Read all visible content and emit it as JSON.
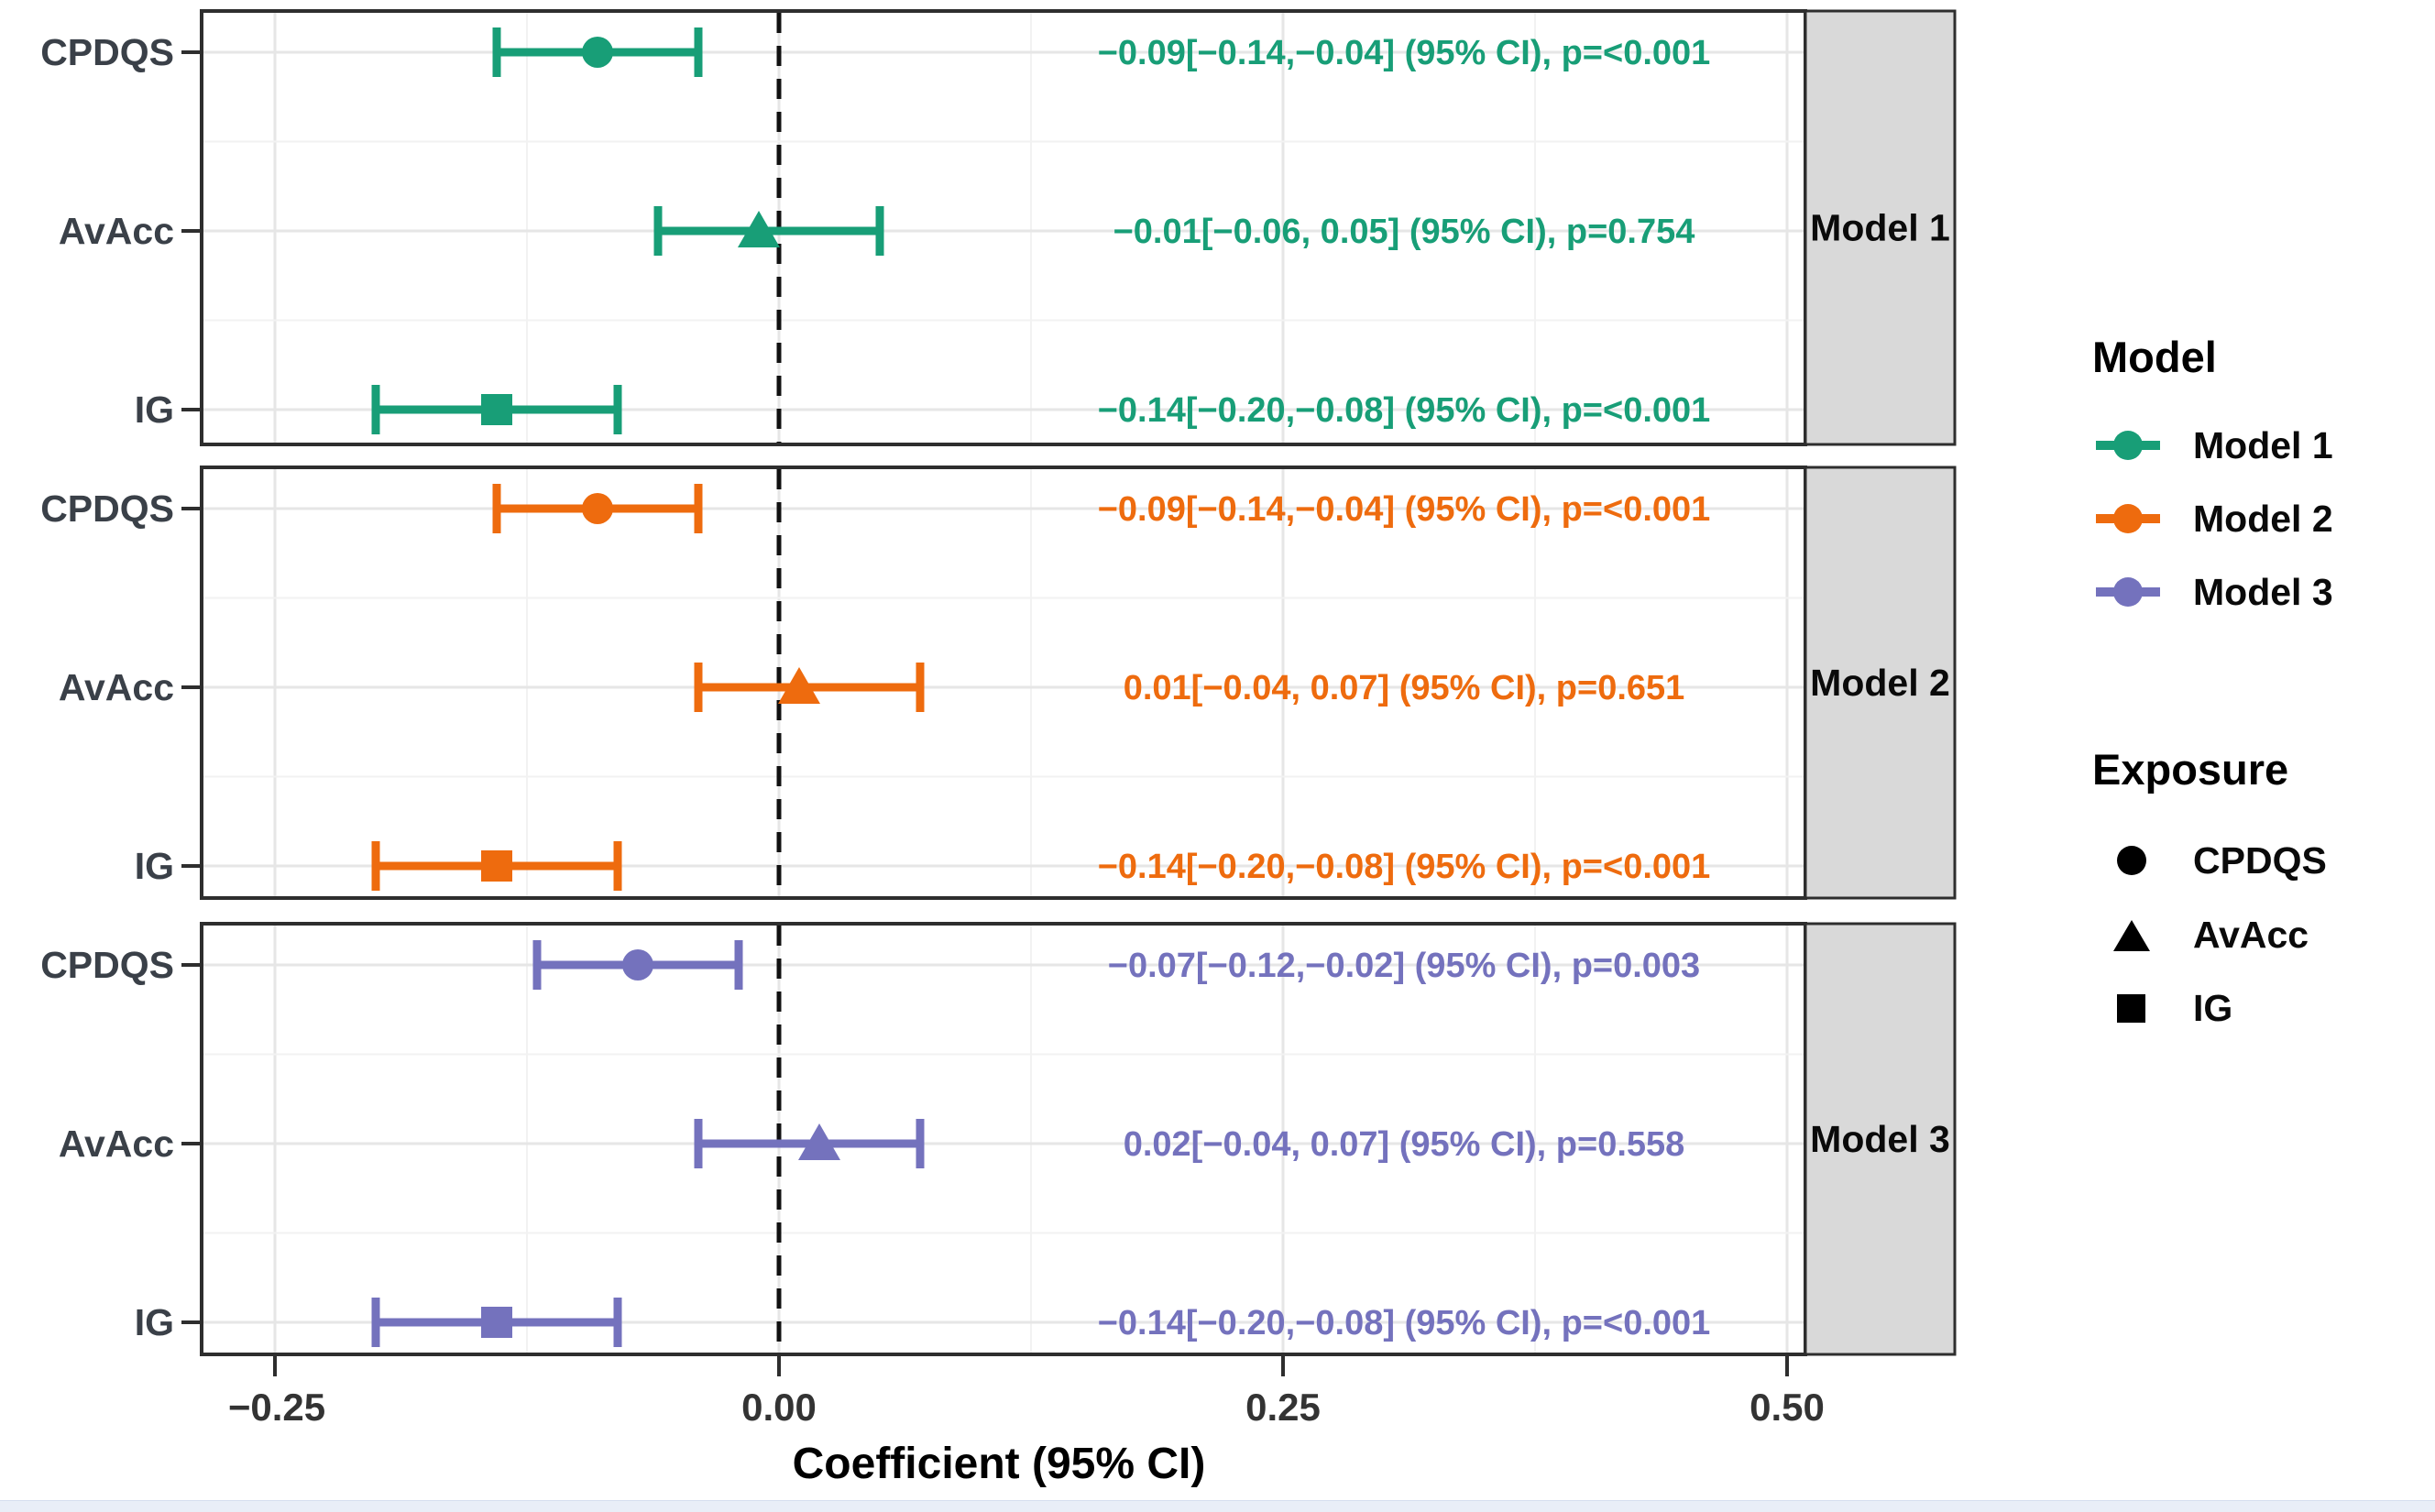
{
  "chart_data": {
    "type": "forest-pointrange",
    "xlabel": "Coefficient (95% CI)",
    "x_ticks": [
      -0.25,
      0,
      0.25,
      0.5
    ],
    "x_tick_labels": [
      "−0.25",
      "0.00",
      "0.25",
      "0.50"
    ],
    "xlim": [
      -0.286,
      0.509
    ],
    "minor_gridlines": [
      -0.125,
      0.125,
      0.375
    ],
    "zero_reference_line": 0,
    "grid": true,
    "legend_position": "right",
    "style": {
      "panel_border": "#2e2e2e",
      "strip_fill": "#d9d9d9",
      "grid_major": "#e6e6e6",
      "grid_minor": "#f2f2f2",
      "zero_line_color": "#111111",
      "tick_color": "#2e2e2e",
      "axis_text": "#3a4048"
    },
    "panels": [
      {
        "strip_label": "Model 1",
        "color": "#189E77",
        "rows": [
          {
            "label": "CPDQS",
            "marker": "circle",
            "estimate": -0.09,
            "lo": -0.14,
            "hi": -0.04,
            "annotation": "−0.09[−0.14,−0.04] (95% CI), p=<0.001"
          },
          {
            "label": "AvAcc",
            "marker": "triangle",
            "estimate": -0.01,
            "lo": -0.06,
            "hi": 0.05,
            "annotation": "−0.01[−0.06, 0.05] (95% CI), p=0.754"
          },
          {
            "label": "IG",
            "marker": "square",
            "estimate": -0.14,
            "lo": -0.2,
            "hi": -0.08,
            "annotation": "−0.14[−0.20,−0.08] (95% CI), p=<0.001"
          }
        ]
      },
      {
        "strip_label": "Model 2",
        "color": "#EE6B0E",
        "rows": [
          {
            "label": "CPDQS",
            "marker": "circle",
            "estimate": -0.09,
            "lo": -0.14,
            "hi": -0.04,
            "annotation": "−0.09[−0.14,−0.04] (95% CI), p=<0.001"
          },
          {
            "label": "AvAcc",
            "marker": "triangle",
            "estimate": 0.01,
            "lo": -0.04,
            "hi": 0.07,
            "annotation": "0.01[−0.04, 0.07] (95% CI), p=0.651"
          },
          {
            "label": "IG",
            "marker": "square",
            "estimate": -0.14,
            "lo": -0.2,
            "hi": -0.08,
            "annotation": "−0.14[−0.20,−0.08] (95% CI), p=<0.001"
          }
        ]
      },
      {
        "strip_label": "Model 3",
        "color": "#7472BD",
        "rows": [
          {
            "label": "CPDQS",
            "marker": "circle",
            "estimate": -0.07,
            "lo": -0.12,
            "hi": -0.02,
            "annotation": "−0.07[−0.12,−0.02] (95% CI), p=0.003"
          },
          {
            "label": "AvAcc",
            "marker": "triangle",
            "estimate": 0.02,
            "lo": -0.04,
            "hi": 0.07,
            "annotation": "0.02[−0.04, 0.07] (95% CI), p=0.558"
          },
          {
            "label": "IG",
            "marker": "square",
            "estimate": -0.14,
            "lo": -0.2,
            "hi": -0.08,
            "annotation": "−0.14[−0.20,−0.08] (95% CI), p=<0.001"
          }
        ]
      }
    ]
  },
  "legend": {
    "model": {
      "title": "Model",
      "items": [
        {
          "label": "Model 1",
          "color": "#189E77"
        },
        {
          "label": "Model 2",
          "color": "#EE6B0E"
        },
        {
          "label": "Model 3",
          "color": "#7472BD"
        }
      ]
    },
    "exposure": {
      "title": "Exposure",
      "symbol_color": "#000000",
      "items": [
        {
          "label": "CPDQS",
          "shape": "circle"
        },
        {
          "label": "AvAcc",
          "shape": "triangle"
        },
        {
          "label": "IG",
          "shape": "square"
        }
      ]
    }
  }
}
